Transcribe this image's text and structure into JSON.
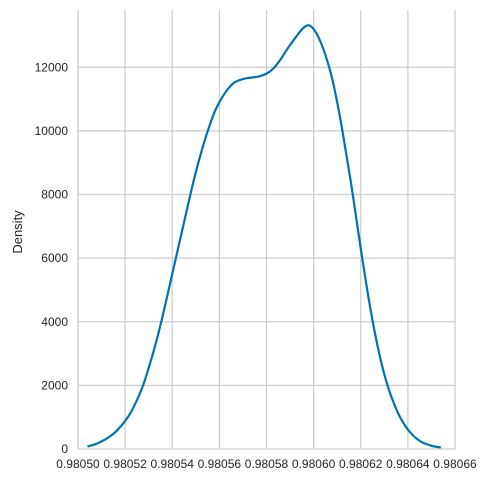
{
  "chart_data": {
    "type": "line",
    "title": "",
    "xlabel": "",
    "ylabel": "Density",
    "xlim": [
      0.9805,
      0.98066
    ],
    "ylim": [
      0,
      13800
    ],
    "grid": true,
    "legend": "none",
    "line_color": "#0072B2",
    "x_ticks": [
      0.9805,
      0.98052,
      0.98054,
      0.98056,
      0.98058,
      0.9806,
      0.98062,
      0.98064,
      0.98066
    ],
    "x_tick_labels": [
      "0.98050",
      "0.98052",
      "0.98054",
      "0.98056",
      "0.98058",
      "0.98060",
      "0.98062",
      "0.98064",
      "0.98066"
    ],
    "y_ticks": [
      0,
      2000,
      4000,
      6000,
      8000,
      10000,
      12000
    ],
    "y_tick_labels": [
      "0",
      "2000",
      "4000",
      "6000",
      "8000",
      "10000",
      "12000"
    ],
    "series": [
      {
        "x": [
          0.980504,
          0.980506,
          0.980508,
          0.98051,
          0.980512,
          0.980514,
          0.980516,
          0.980518,
          0.98052,
          0.980522,
          0.980524,
          0.980526,
          0.980528,
          0.98053,
          0.980532,
          0.980534,
          0.980536,
          0.980538,
          0.98054,
          0.980542,
          0.980544,
          0.980546,
          0.980548,
          0.98055,
          0.980552,
          0.980554,
          0.980556,
          0.980558,
          0.98056,
          0.980562,
          0.980564,
          0.980566,
          0.980568,
          0.98057,
          0.980572,
          0.980574,
          0.980576,
          0.980578,
          0.98058,
          0.980582,
          0.980584,
          0.980586,
          0.980588,
          0.98059,
          0.980592,
          0.980594,
          0.980596,
          0.980598,
          0.9806,
          0.980602,
          0.980604,
          0.980606,
          0.980608,
          0.98061,
          0.980612,
          0.980614,
          0.980616,
          0.980618,
          0.98062,
          0.980622,
          0.980624,
          0.980626,
          0.980628,
          0.98063,
          0.980632,
          0.980634,
          0.980636,
          0.980638,
          0.98064,
          0.980642,
          0.980644,
          0.980646,
          0.980648,
          0.98065,
          0.980652,
          0.980654
        ],
        "y": [
          80,
          120,
          170,
          240,
          320,
          420,
          540,
          700,
          880,
          1100,
          1380,
          1700,
          2080,
          2550,
          3050,
          3600,
          4200,
          4850,
          5500,
          6150,
          6800,
          7450,
          8100,
          8700,
          9250,
          9750,
          10200,
          10600,
          10900,
          11150,
          11350,
          11500,
          11580,
          11630,
          11660,
          11680,
          11700,
          11740,
          11800,
          11900,
          12050,
          12250,
          12480,
          12700,
          12900,
          13100,
          13260,
          13320,
          13200,
          12950,
          12600,
          12150,
          11600,
          10900,
          10100,
          9200,
          8300,
          7300,
          6300,
          5350,
          4450,
          3650,
          2950,
          2350,
          1850,
          1450,
          1100,
          830,
          610,
          440,
          310,
          210,
          150,
          100,
          70,
          50
        ]
      }
    ]
  }
}
